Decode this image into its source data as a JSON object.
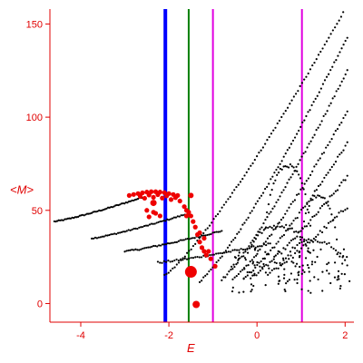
{
  "chart_data": {
    "type": "scatter",
    "title": "",
    "xlabel": "E",
    "ylabel": "<M>",
    "xlim": [
      -4.7,
      2.2
    ],
    "ylim": [
      -10,
      158
    ],
    "xticks": [
      -4,
      -2,
      0,
      2
    ],
    "yticks": [
      0,
      50,
      100,
      150
    ],
    "grid": false,
    "colors": {
      "axis": "#e00000",
      "black_points": "#000000",
      "red_points": "#ee0000",
      "blue_line": "#0000ff",
      "green_line": "#008000",
      "magenta_line": "#e000e0"
    },
    "vertical_lines": [
      {
        "x": -2.08,
        "color": "#0000ff",
        "width": "thick"
      },
      {
        "x": -1.55,
        "color": "#008000",
        "width": "thin"
      },
      {
        "x": -1.0,
        "color": "#e000e0",
        "width": "thin"
      },
      {
        "x": 1.02,
        "color": "#e000e0",
        "width": "thin"
      }
    ],
    "branches": [
      {
        "x0": -4.6,
        "x1": -2.6,
        "y0": 44,
        "y1": 57,
        "n": 60,
        "jitter": 0.3
      },
      {
        "x0": -3.75,
        "x1": -1.6,
        "y0": 35,
        "y1": 48,
        "n": 55,
        "jitter": 0.3
      },
      {
        "x0": -3.0,
        "x1": -0.8,
        "y0": 28,
        "y1": 39,
        "n": 55,
        "jitter": 0.4
      },
      {
        "x0": -2.25,
        "x1": 0.3,
        "y0": 22,
        "y1": 32,
        "n": 55,
        "jitter": 0.5
      },
      {
        "x0": -2.1,
        "x1": 2.05,
        "y0": 15,
        "y1": 160,
        "n": 90,
        "jitter": 0.4
      },
      {
        "x0": -1.3,
        "x1": 2.05,
        "y0": 12,
        "y1": 143,
        "n": 80,
        "jitter": 0.5
      },
      {
        "x0": -0.8,
        "x1": 2.05,
        "y0": 13,
        "y1": 125,
        "n": 70,
        "jitter": 0.6
      },
      {
        "x0": -0.55,
        "x1": 2.05,
        "y0": 13,
        "y1": 103,
        "n": 60,
        "jitter": 0.7
      },
      {
        "x0": -0.3,
        "x1": 2.05,
        "y0": 14,
        "y1": 86,
        "n": 55,
        "jitter": 0.8
      },
      {
        "x0": -0.1,
        "x1": 2.05,
        "y0": 15,
        "y1": 68,
        "n": 50,
        "jitter": 1.0
      },
      {
        "x0": 0.2,
        "x1": 2.05,
        "y0": 16,
        "y1": 52,
        "n": 40,
        "jitter": 1.2
      }
    ],
    "humps": [
      {
        "cx": 0.7,
        "r": 0.55,
        "base": 22,
        "h": 52,
        "n": 30
      },
      {
        "cx": 1.4,
        "r": 0.45,
        "base": 18,
        "h": 40,
        "n": 24
      },
      {
        "cx": 0.5,
        "r": 0.8,
        "base": 14,
        "h": 28,
        "n": 36
      },
      {
        "cx": 1.3,
        "r": 0.8,
        "base": 12,
        "h": 22,
        "n": 32
      }
    ],
    "scatter_cloud": {
      "x0": -0.6,
      "x1": 2.05,
      "y0": 5,
      "y1": 30,
      "n": 110
    },
    "red_cluster": {
      "points": [
        [
          -2.9,
          58
        ],
        [
          -2.8,
          58.5
        ],
        [
          -2.7,
          59
        ],
        [
          -2.6,
          59.4
        ],
        [
          -2.5,
          59.8
        ],
        [
          -2.4,
          60
        ],
        [
          -2.3,
          60
        ],
        [
          -2.2,
          59.8
        ],
        [
          -2.1,
          59.5
        ],
        [
          -2.0,
          59
        ],
        [
          -1.9,
          58.5
        ],
        [
          -1.8,
          58
        ],
        [
          -2.65,
          57.5
        ],
        [
          -2.45,
          58.2
        ],
        [
          -2.25,
          58.4
        ],
        [
          -2.05,
          57.8
        ],
        [
          -1.85,
          56.8
        ],
        [
          -2.55,
          56.5
        ],
        [
          -2.35,
          57
        ],
        [
          -2.15,
          56.6
        ],
        [
          -1.95,
          55.8
        ],
        [
          -1.75,
          55
        ],
        [
          -1.65,
          52
        ],
        [
          -1.6,
          50
        ],
        [
          -1.55,
          49
        ],
        [
          -1.6,
          47
        ],
        [
          -1.5,
          47
        ],
        [
          -1.45,
          44
        ],
        [
          -1.4,
          41
        ],
        [
          -1.35,
          37
        ],
        [
          -1.3,
          33
        ],
        [
          -1.25,
          30
        ],
        [
          -1.2,
          28
        ],
        [
          -1.15,
          26
        ],
        [
          -1.2,
          35
        ],
        [
          -1.3,
          38
        ],
        [
          -1.1,
          28
        ],
        [
          -1.05,
          24
        ],
        [
          -0.95,
          20
        ],
        [
          -2.35,
          49
        ],
        [
          -2.5,
          50
        ],
        [
          -2.2,
          47
        ],
        [
          -2.45,
          46.5
        ],
        [
          -2.3,
          48.4
        ]
      ],
      "big": [
        [
          -1.5,
          17,
          6.5
        ],
        [
          -1.38,
          -0.5,
          4
        ],
        [
          -2.35,
          54,
          3.5
        ],
        [
          -1.5,
          58,
          3
        ],
        [
          -1.3,
          33,
          2.4
        ]
      ]
    }
  }
}
